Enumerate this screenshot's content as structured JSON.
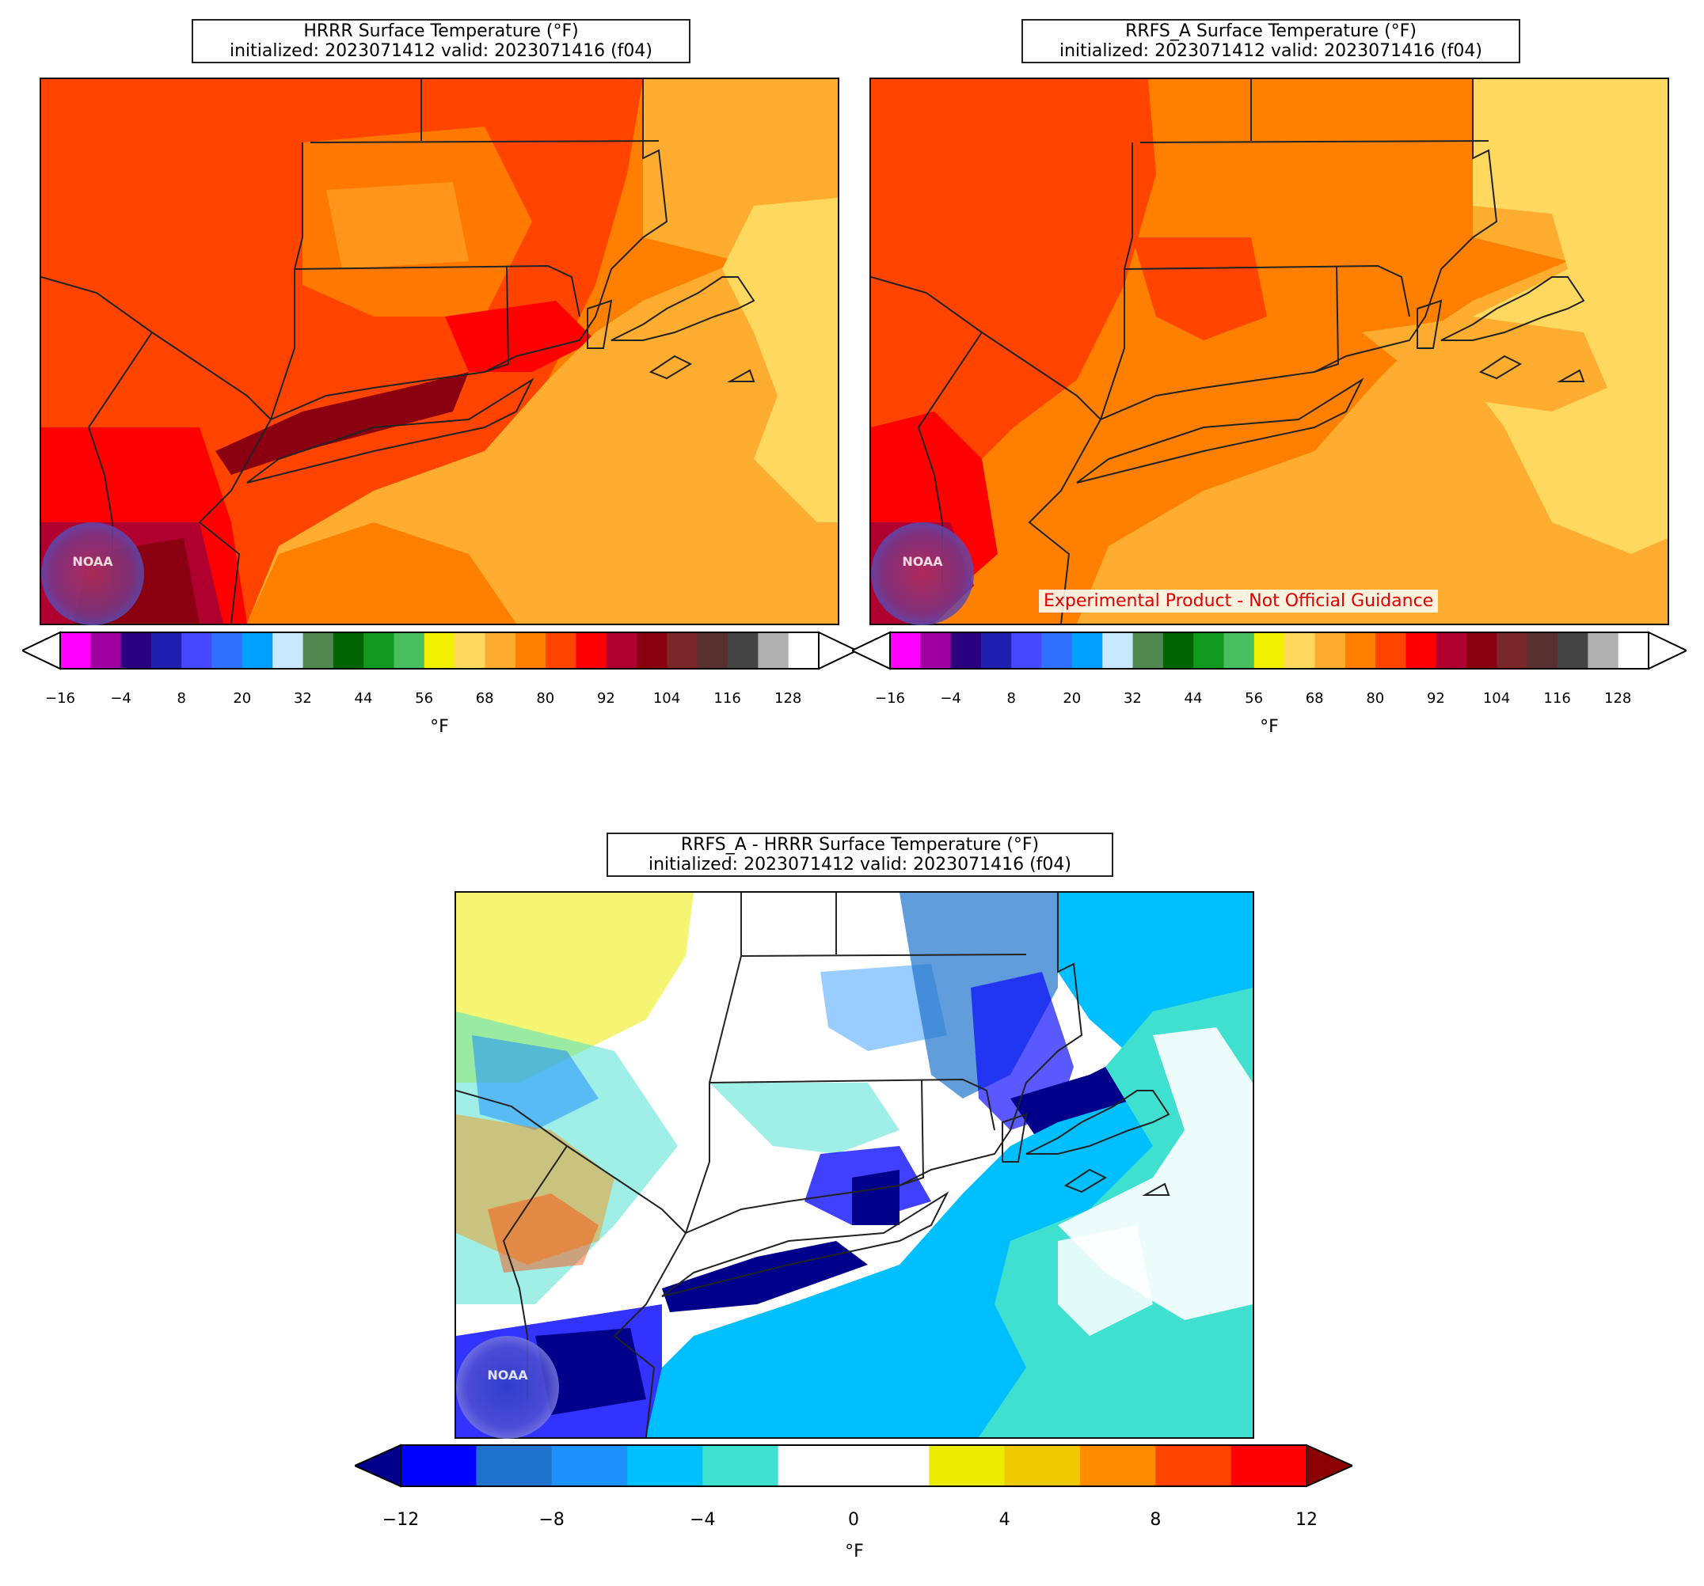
{
  "panels": {
    "hrrr": {
      "title_line1": "HRRR Surface Temperature (°F)",
      "title_line2": "initialized: 2023071412 valid: 2023071416 (f04)"
    },
    "rrfs": {
      "title_line1": "RRFS_A Surface Temperature (°F)",
      "title_line2": "initialized: 2023071412 valid: 2023071416 (f04)",
      "disclaimer": "Experimental Product - Not Official Guidance"
    },
    "diff": {
      "title_line1": "RRFS_A - HRRR Surface Temperature (°F)",
      "title_line2": "initialized: 2023071412 valid: 2023071416 (f04)"
    }
  },
  "logo_text": "NOAA",
  "temp_colorbar": {
    "unit": "°F",
    "ticks": [
      "−16",
      "−4",
      "8",
      "20",
      "32",
      "44",
      "56",
      "68",
      "80",
      "92",
      "104",
      "116",
      "128"
    ],
    "colors": [
      "#ff00ff",
      "#a000a0",
      "#2a0080",
      "#2020b0",
      "#4848ff",
      "#3070ff",
      "#00a0ff",
      "#c8e8ff",
      "#508850",
      "#006400",
      "#109a20",
      "#48c060",
      "#f0f000",
      "#ffd860",
      "#ffad30",
      "#ff8000",
      "#ff4400",
      "#ff0000",
      "#b00030",
      "#8a0010",
      "#782828",
      "#583030",
      "#444444",
      "#b0b0b0",
      "#ffffff"
    ]
  },
  "diff_colorbar": {
    "unit": "°F",
    "ticks": [
      "−12",
      "−8",
      "−4",
      "0",
      "4",
      "8",
      "12"
    ],
    "colors": [
      "#0000ff",
      "#1e72cc",
      "#1e90ff",
      "#00bfff",
      "#40e0d0",
      "#ffffff",
      "#ffffff",
      "#ecec00",
      "#eec900",
      "#ff8c00",
      "#ff4500",
      "#ff0000"
    ],
    "under": "#00008b",
    "over": "#8b0000"
  }
}
